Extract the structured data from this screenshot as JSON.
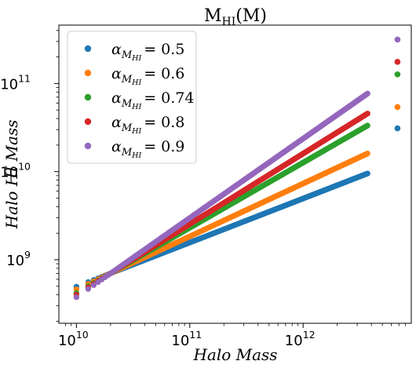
{
  "chart_data": {
    "type": "scatter",
    "title": {
      "base": "M",
      "sub": "HI",
      "rest": "(M)"
    },
    "xlabel": "Halo Mass",
    "ylabel": "Halo HI Mass",
    "xscale": "log",
    "yscale": "log",
    "xlim": [
      7000000000.0,
      9000000000000.0
    ],
    "ylim": [
      190000000.0,
      460000000000.0
    ],
    "xticks": [
      {
        "base": "10",
        "exp": "10",
        "value": 10000000000.0
      },
      {
        "base": "10",
        "exp": "11",
        "value": 100000000000.0
      },
      {
        "base": "10",
        "exp": "12",
        "value": 1000000000000.0
      }
    ],
    "yticks": [
      {
        "base": "10",
        "exp": "9",
        "value": 1000000000.0
      },
      {
        "base": "10",
        "exp": "10",
        "value": 10000000000.0
      },
      {
        "base": "10",
        "exp": "11",
        "value": 100000000000.0
      }
    ],
    "grid": false,
    "legend_position": "upper-left",
    "legend_symbol": "α",
    "legend_sub_main": "M",
    "legend_sub_sub": "HI",
    "pivot": {
      "x": 20000000000.0,
      "y": 700000000.0
    },
    "x_range": [
      10000000000.0,
      3700000000000.0
    ],
    "outlier_x": 6800000000000.0,
    "series": [
      {
        "name": "α_{M_HI} = 0.5",
        "legend_value": "0.5",
        "alpha": 0.5,
        "color": "#1f77b4",
        "outlier_y": 31000000000.0
      },
      {
        "name": "α_{M_HI} = 0.6",
        "legend_value": "0.6",
        "alpha": 0.6,
        "color": "#ff7f0e",
        "outlier_y": 54000000000.0
      },
      {
        "name": "α_{M_HI} = 0.74",
        "legend_value": "0.74",
        "alpha": 0.74,
        "color": "#2ca02c",
        "outlier_y": 127000000000.0
      },
      {
        "name": "α_{M_HI} = 0.8",
        "legend_value": "0.8",
        "alpha": 0.8,
        "color": "#d62728",
        "outlier_y": 176000000000.0
      },
      {
        "name": "α_{M_HI} = 0.9",
        "legend_value": "0.9",
        "alpha": 0.9,
        "color": "#9467bd",
        "outlier_y": 315000000000.0
      }
    ]
  }
}
